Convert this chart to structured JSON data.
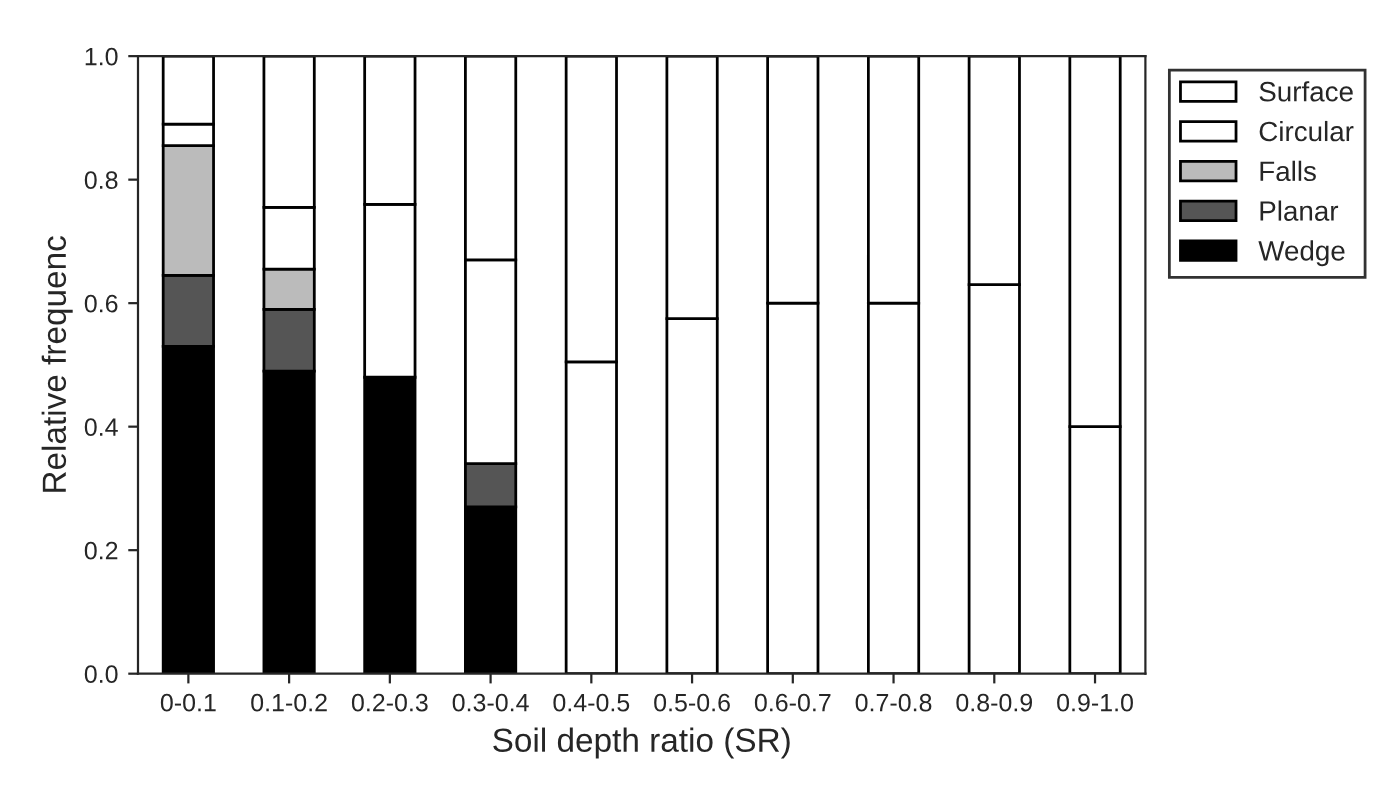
{
  "chart_data": {
    "type": "bar",
    "stacked": true,
    "xlabel": "Soil depth ratio (SR)",
    "ylabel": "Relative frequenc",
    "categories": [
      "0-0.1",
      "0.1-0.2",
      "0.2-0.3",
      "0.3-0.4",
      "0.4-0.5",
      "0.5-0.6",
      "0.6-0.7",
      "0.7-0.8",
      "0.8-0.9",
      "0.9-1.0"
    ],
    "series": [
      {
        "name": "Wedge",
        "color": "#000000",
        "values": [
          0.53,
          0.49,
          0.48,
          0.27,
          0,
          0,
          0,
          0,
          0,
          0
        ]
      },
      {
        "name": "Planar",
        "color": "#555555",
        "values": [
          0.115,
          0.1,
          0,
          0.07,
          0,
          0,
          0,
          0,
          0,
          0
        ]
      },
      {
        "name": "Falls",
        "color": "#bbbbbb",
        "values": [
          0.21,
          0.065,
          0,
          0,
          0,
          0,
          0,
          0,
          0,
          0
        ]
      },
      {
        "name": "Circular",
        "color": "#ffffff",
        "values": [
          0.035,
          0.1,
          0.28,
          0.33,
          0.505,
          0.575,
          0.6,
          0.6,
          0.63,
          0.4
        ]
      },
      {
        "name": "Surface",
        "color": "#ffffff",
        "values": [
          0.11,
          0.245,
          0.24,
          0.33,
          0.495,
          0.425,
          0.4,
          0.4,
          0.37,
          0.6
        ]
      }
    ],
    "ylim": [
      0,
      1.0
    ],
    "yticks": [
      {
        "value": 0,
        "label": "0.0"
      },
      0.2,
      0.4,
      0.6,
      0.8,
      {
        "value": 1.0,
        "label": "1.0"
      }
    ],
    "legend": "top right",
    "grid": false
  }
}
